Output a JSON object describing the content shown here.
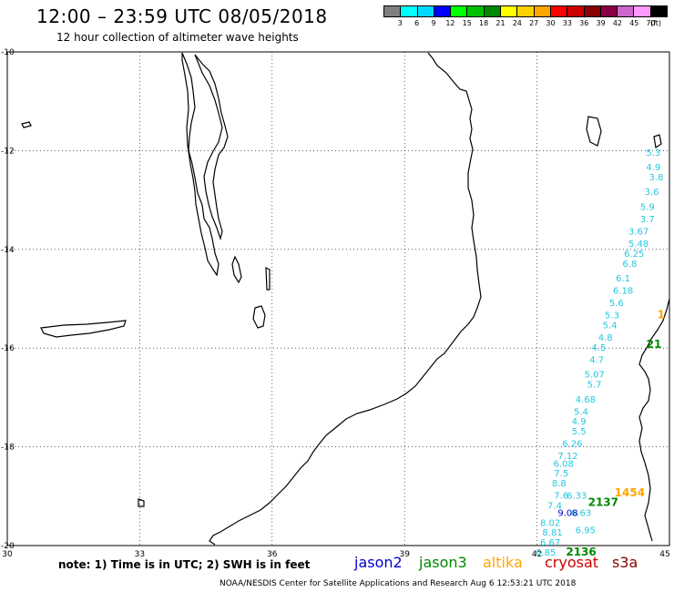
{
  "header": {
    "title": "12:00 – 23:59 UTC 08/05/2018",
    "subtitle": "12 hour collection of altimeter wave heights"
  },
  "scale": {
    "unit": "(ft)",
    "colors": [
      "#7f7f7f",
      "#00ffff",
      "#00d8ff",
      "#0000ff",
      "#00ff00",
      "#00c000",
      "#008800",
      "#ffff00",
      "#ffd000",
      "#ffa500",
      "#ff0000",
      "#cc0000",
      "#880000",
      "#880044",
      "#cc66cc",
      "#ff99ff",
      "#000000"
    ],
    "labels": [
      "3",
      "6",
      "9",
      "12",
      "15",
      "18",
      "21",
      "24",
      "27",
      "30",
      "33",
      "36",
      "39",
      "42",
      "45",
      "70"
    ]
  },
  "axes": {
    "lon_labels": [
      "30",
      "33",
      "36",
      "39",
      "42",
      "45"
    ],
    "lat_labels": [
      "-10",
      "-12",
      "-14",
      "-16",
      "-18",
      "-20"
    ]
  },
  "tracks": {
    "cyan": [
      {
        "t": "5.3",
        "lon": 44.8,
        "lat": -12.1
      },
      {
        "t": "4.9",
        "lon": 44.8,
        "lat": -12.4
      },
      {
        "t": "3.8",
        "lon": 44.7,
        "lat": -12.6
      },
      {
        "t": "3.6",
        "lon": 44.6,
        "lat": -12.9
      },
      {
        "t": "5.9",
        "lon": 44.5,
        "lat": -13.2
      },
      {
        "t": "3.7",
        "lon": 44.5,
        "lat": -13.45
      },
      {
        "t": "3.67",
        "lon": 44.3,
        "lat": -13.7
      },
      {
        "t": "5.48",
        "lon": 44.3,
        "lat": -13.95
      },
      {
        "t": "6.25",
        "lon": 44.2,
        "lat": -14.15
      },
      {
        "t": "6.8",
        "lon": 44.1,
        "lat": -14.35
      },
      {
        "t": "6.1",
        "lon": 43.95,
        "lat": -14.65
      },
      {
        "t": "6.18",
        "lon": 43.95,
        "lat": -14.9
      },
      {
        "t": "5.6",
        "lon": 43.8,
        "lat": -15.15
      },
      {
        "t": "5.3",
        "lon": 43.7,
        "lat": -15.4
      },
      {
        "t": "5.4",
        "lon": 43.65,
        "lat": -15.6
      },
      {
        "t": "4.8",
        "lon": 43.55,
        "lat": -15.85
      },
      {
        "t": "4.5",
        "lon": 43.4,
        "lat": -16.05
      },
      {
        "t": "4.7",
        "lon": 43.35,
        "lat": -16.3
      },
      {
        "t": "5.07",
        "lon": 43.3,
        "lat": -16.6
      },
      {
        "t": "5.7",
        "lon": 43.3,
        "lat": -16.8
      },
      {
        "t": "4.68",
        "lon": 43.1,
        "lat": -17.1
      },
      {
        "t": "5.4",
        "lon": 43.0,
        "lat": -17.35
      },
      {
        "t": "4.9",
        "lon": 42.95,
        "lat": -17.55
      },
      {
        "t": "5.5",
        "lon": 42.95,
        "lat": -17.75
      },
      {
        "t": "6.26",
        "lon": 42.8,
        "lat": -18.0
      },
      {
        "t": "7.12",
        "lon": 42.7,
        "lat": -18.25
      },
      {
        "t": "6.08",
        "lon": 42.6,
        "lat": -18.4
      },
      {
        "t": "7.5",
        "lon": 42.55,
        "lat": -18.6
      },
      {
        "t": "8.8",
        "lon": 42.5,
        "lat": -18.8
      },
      {
        "t": "7.6",
        "lon": 42.55,
        "lat": -19.05
      },
      {
        "t": "7.4",
        "lon": 42.4,
        "lat": -19.25
      },
      {
        "t": "8.02",
        "lon": 42.3,
        "lat": -19.6
      },
      {
        "t": "8.81",
        "lon": 42.35,
        "lat": -19.8
      },
      {
        "t": "6.67",
        "lon": 42.3,
        "lat": -20.0
      },
      {
        "t": "6.85",
        "lon": 42.2,
        "lat": -20.2
      },
      {
        "t": "6.33",
        "lon": 42.9,
        "lat": -19.05
      },
      {
        "t": "6.63",
        "lon": 43.0,
        "lat": -19.4
      },
      {
        "t": "6.95",
        "lon": 43.1,
        "lat": -19.75
      }
    ],
    "blue": [
      {
        "t": "9.08",
        "lon": 42.7,
        "lat": -19.4
      }
    ],
    "green": [
      {
        "t": "21",
        "lon": 44.65,
        "lat": -16.0
      },
      {
        "t": "2137",
        "lon": 43.5,
        "lat": -19.2
      },
      {
        "t": "2136",
        "lon": 43.0,
        "lat": -20.2
      }
    ],
    "orange": [
      {
        "t": "1454",
        "lon": 44.1,
        "lat": -19.0
      },
      {
        "t": "1",
        "lon": 44.9,
        "lat": -15.4
      }
    ]
  },
  "footer": {
    "note": "note:  1) Time is in UTC;  2) SWH is in feet",
    "credit": "NOAA/NESDIS Center for Satellite Applications and Research    Aug  6 12:53:21 UTC 2018",
    "legend": [
      {
        "name": "jason2",
        "color": "#0000cc"
      },
      {
        "name": "jason3",
        "color": "#008800"
      },
      {
        "name": "altika",
        "color": "#ffa500"
      },
      {
        "name": "cryosat",
        "color": "#cc0000"
      },
      {
        "name": "s3a",
        "color": "#880000"
      }
    ]
  }
}
